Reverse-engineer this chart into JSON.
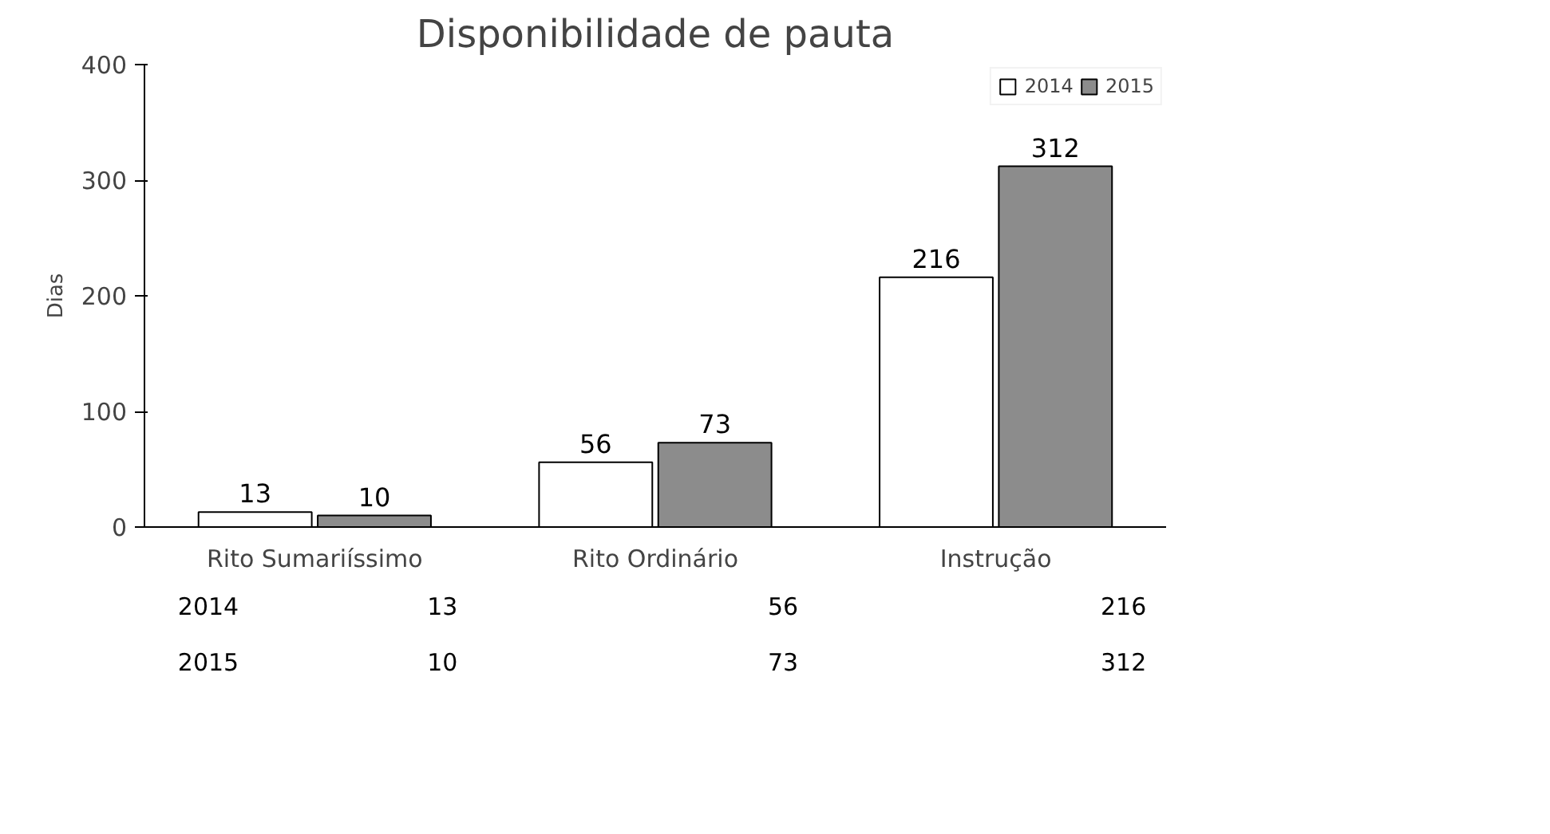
{
  "chart_data": {
    "type": "bar",
    "title": "Disponibilidade de pauta",
    "ylabel": "Dias",
    "categories": [
      "Rito Sumariíssimo",
      "Rito Ordinário",
      "Instrução"
    ],
    "series": [
      {
        "name": "2014",
        "color": "#ffffff",
        "values": [
          13,
          56,
          216
        ]
      },
      {
        "name": "2015",
        "color": "#8c8c8c",
        "values": [
          10,
          73,
          312
        ]
      }
    ],
    "ylim": [
      0,
      400
    ],
    "yticks": [
      0,
      100,
      200,
      300,
      400
    ],
    "grid": false,
    "legend": "top right",
    "data_labels": true,
    "annotations": [
      "2014",
      "13",
      "56",
      "216",
      "2015",
      "10",
      "73",
      "312"
    ]
  }
}
